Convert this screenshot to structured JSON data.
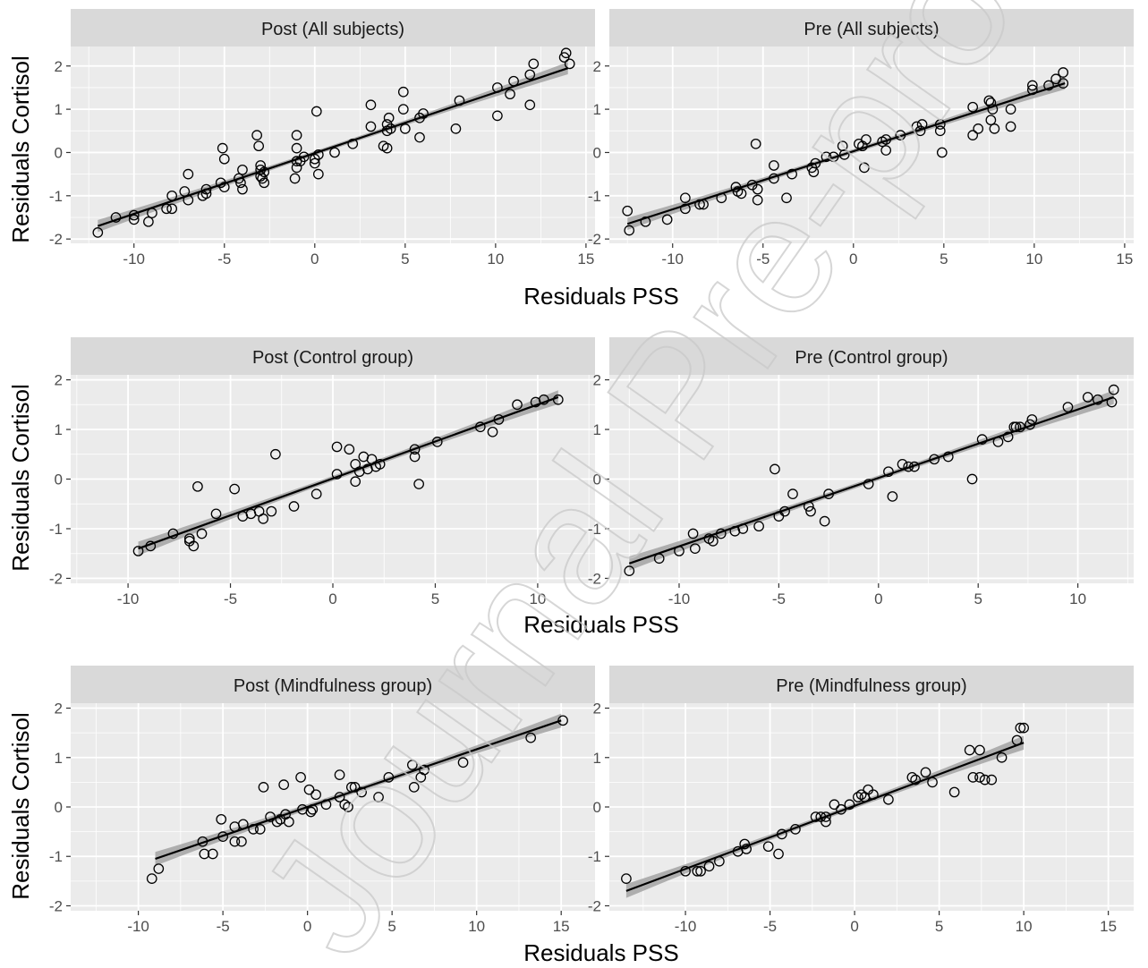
{
  "colors": {
    "panel_bg": "#ebebeb",
    "strip_bg": "#d9d9d9",
    "grid": "#ffffff",
    "point": "#000000",
    "line": "#000000",
    "band": "#999999"
  },
  "watermark": "Journal Pre-proof",
  "chart_data": [
    {
      "row": 1,
      "col": 1,
      "type": "scatter",
      "title": "Post (All subjects)",
      "xlabel": "Residuals PSS",
      "ylabel": "Residuals Cortisol",
      "xlim": [
        -13.5,
        15.5
      ],
      "ylim": [
        -2.1,
        2.45
      ],
      "xticks": [
        -10,
        -5,
        0,
        5,
        10,
        15
      ],
      "yticks": [
        -2,
        -1,
        0,
        1,
        2
      ],
      "regression": {
        "x": [
          -12,
          14
        ],
        "y": [
          -1.7,
          1.95
        ]
      },
      "points": [
        [
          -12,
          -1.85
        ],
        [
          -11,
          -1.5
        ],
        [
          -10,
          -1.55
        ],
        [
          -10,
          -1.45
        ],
        [
          -9.2,
          -1.6
        ],
        [
          -9,
          -1.4
        ],
        [
          -8.2,
          -1.3
        ],
        [
          -7.9,
          -1.3
        ],
        [
          -7.9,
          -1
        ],
        [
          -7.2,
          -0.9
        ],
        [
          -7,
          -0.5
        ],
        [
          -7,
          -1.1
        ],
        [
          -6.2,
          -1
        ],
        [
          -6,
          -0.85
        ],
        [
          -6,
          -0.95
        ],
        [
          -5.1,
          0.1
        ],
        [
          -5,
          -0.15
        ],
        [
          -5.2,
          -0.7
        ],
        [
          -5,
          -0.8
        ],
        [
          -4.2,
          -0.6
        ],
        [
          -4.1,
          -0.7
        ],
        [
          -4,
          -0.85
        ],
        [
          -4,
          -0.4
        ],
        [
          -3.2,
          0.4
        ],
        [
          -3.1,
          0.15
        ],
        [
          -3,
          -0.3
        ],
        [
          -3,
          -0.4
        ],
        [
          -3,
          -0.55
        ],
        [
          -2.9,
          -0.6
        ],
        [
          -2.8,
          -0.7
        ],
        [
          -2.8,
          -0.45
        ],
        [
          -1,
          0.4
        ],
        [
          -1,
          0.1
        ],
        [
          -1,
          -0.2
        ],
        [
          -1,
          -0.35
        ],
        [
          -1.1,
          -0.6
        ],
        [
          -0.8,
          -0.2
        ],
        [
          -0.6,
          -0.1
        ],
        [
          0,
          -0.15
        ],
        [
          0,
          -0.25
        ],
        [
          0.1,
          0.95
        ],
        [
          0.2,
          -0.5
        ],
        [
          0.2,
          -0.05
        ],
        [
          1.1,
          0
        ],
        [
          2.1,
          0.2
        ],
        [
          3.1,
          1.1
        ],
        [
          3.1,
          0.6
        ],
        [
          3.8,
          0.15
        ],
        [
          4,
          0.1
        ],
        [
          4,
          0.5
        ],
        [
          4,
          0.65
        ],
        [
          4.1,
          0.8
        ],
        [
          4.2,
          0.55
        ],
        [
          4.9,
          1.4
        ],
        [
          4.9,
          1
        ],
        [
          5,
          0.55
        ],
        [
          5.8,
          0.8
        ],
        [
          5.8,
          0.35
        ],
        [
          6,
          0.9
        ],
        [
          7.8,
          0.55
        ],
        [
          8,
          1.2
        ],
        [
          10.1,
          1.5
        ],
        [
          10.1,
          0.85
        ],
        [
          10.8,
          1.35
        ],
        [
          11,
          1.65
        ],
        [
          11.9,
          1.8
        ],
        [
          11.9,
          1.1
        ],
        [
          12.1,
          2.05
        ],
        [
          13.8,
          2.2
        ],
        [
          13.9,
          2.3
        ],
        [
          14.1,
          2.05
        ]
      ]
    },
    {
      "row": 1,
      "col": 2,
      "type": "scatter",
      "title": "Pre (All subjects)",
      "xlabel": "Residuals PSS",
      "ylabel": "Residuals Cortisol",
      "xlim": [
        -13.5,
        15.5
      ],
      "ylim": [
        -2.1,
        2.45
      ],
      "xticks": [
        -10,
        -5,
        0,
        5,
        10,
        15
      ],
      "yticks": [
        -2,
        -1,
        0,
        1,
        2
      ],
      "regression": {
        "x": [
          -12.5,
          11.7
        ],
        "y": [
          -1.65,
          1.6
        ]
      },
      "points": [
        [
          -12.5,
          -1.35
        ],
        [
          -12.4,
          -1.8
        ],
        [
          -11.5,
          -1.6
        ],
        [
          -10.3,
          -1.55
        ],
        [
          -9.3,
          -1.05
        ],
        [
          -9.3,
          -1.3
        ],
        [
          -8.5,
          -1.2
        ],
        [
          -8.3,
          -1.2
        ],
        [
          -7.3,
          -1.05
        ],
        [
          -6.5,
          -0.8
        ],
        [
          -6.4,
          -0.9
        ],
        [
          -6.2,
          -0.95
        ],
        [
          -5.6,
          -0.75
        ],
        [
          -5.4,
          0.2
        ],
        [
          -5.3,
          -0.85
        ],
        [
          -5.3,
          -1.1
        ],
        [
          -4.4,
          -0.3
        ],
        [
          -4.4,
          -0.6
        ],
        [
          -3.7,
          -1.05
        ],
        [
          -3.4,
          -0.5
        ],
        [
          -2.3,
          -0.35
        ],
        [
          -2.1,
          -0.25
        ],
        [
          -2.2,
          -0.45
        ],
        [
          -1.5,
          -0.1
        ],
        [
          -1.1,
          -0.1
        ],
        [
          -0.6,
          0.15
        ],
        [
          -0.5,
          -0.05
        ],
        [
          0.3,
          0.2
        ],
        [
          0.5,
          0.15
        ],
        [
          0.6,
          -0.35
        ],
        [
          0.7,
          0.3
        ],
        [
          1.6,
          0.25
        ],
        [
          1.8,
          0.3
        ],
        [
          1.8,
          0.05
        ],
        [
          2.6,
          0.4
        ],
        [
          3.5,
          0.6
        ],
        [
          3.7,
          0.5
        ],
        [
          3.8,
          0.65
        ],
        [
          4.8,
          0.65
        ],
        [
          4.8,
          0.5
        ],
        [
          4.9,
          0
        ],
        [
          6.6,
          1.05
        ],
        [
          6.6,
          0.4
        ],
        [
          6.9,
          0.55
        ],
        [
          7.5,
          1.2
        ],
        [
          7.6,
          1.15
        ],
        [
          7.7,
          1
        ],
        [
          7.6,
          0.75
        ],
        [
          7.8,
          0.55
        ],
        [
          8.7,
          0.6
        ],
        [
          8.7,
          1
        ],
        [
          9.9,
          1.45
        ],
        [
          9.9,
          1.55
        ],
        [
          10.8,
          1.55
        ],
        [
          11.2,
          1.7
        ],
        [
          11.6,
          1.85
        ],
        [
          11.6,
          1.6
        ]
      ]
    },
    {
      "row": 2,
      "col": 1,
      "type": "scatter",
      "title": "Post (Control group)",
      "xlabel": "Residuals PSS",
      "ylabel": "Residuals Cortisol",
      "xlim": [
        -12.8,
        12.8
      ],
      "ylim": [
        -2.1,
        2.1
      ],
      "xticks": [
        -10,
        -5,
        0,
        5,
        10
      ],
      "yticks": [
        -2,
        -1,
        0,
        1,
        2
      ],
      "regression": {
        "x": [
          -9.5,
          11
        ],
        "y": [
          -1.4,
          1.65
        ]
      },
      "points": [
        [
          -9.5,
          -1.45
        ],
        [
          -8.9,
          -1.35
        ],
        [
          -7.8,
          -1.1
        ],
        [
          -7,
          -1.2
        ],
        [
          -7,
          -1.25
        ],
        [
          -6.8,
          -1.35
        ],
        [
          -6.6,
          -0.15
        ],
        [
          -6.4,
          -1.1
        ],
        [
          -5.7,
          -0.7
        ],
        [
          -4.8,
          -0.2
        ],
        [
          -4.4,
          -0.75
        ],
        [
          -4,
          -0.7
        ],
        [
          -3.6,
          -0.65
        ],
        [
          -3.4,
          -0.8
        ],
        [
          -3,
          -0.65
        ],
        [
          -2.8,
          0.5
        ],
        [
          -1.9,
          -0.55
        ],
        [
          -0.8,
          -0.3
        ],
        [
          0.2,
          0.65
        ],
        [
          0.2,
          0.1
        ],
        [
          0.8,
          0.6
        ],
        [
          1.1,
          0.3
        ],
        [
          1.1,
          -0.05
        ],
        [
          1.3,
          0.15
        ],
        [
          1.5,
          0.45
        ],
        [
          1.7,
          0.2
        ],
        [
          1.9,
          0.4
        ],
        [
          2.1,
          0.25
        ],
        [
          2.3,
          0.3
        ],
        [
          4,
          0.45
        ],
        [
          4,
          0.6
        ],
        [
          4.2,
          -0.1
        ],
        [
          5.1,
          0.75
        ],
        [
          7.2,
          1.05
        ],
        [
          7.8,
          0.95
        ],
        [
          8.1,
          1.2
        ],
        [
          9,
          1.5
        ],
        [
          9.9,
          1.55
        ],
        [
          10.3,
          1.6
        ],
        [
          11,
          1.6
        ]
      ]
    },
    {
      "row": 2,
      "col": 2,
      "type": "scatter",
      "title": "Pre (Control group)",
      "xlabel": "Residuals PSS",
      "ylabel": "Residuals Cortisol",
      "xlim": [
        -13.5,
        12.8
      ],
      "ylim": [
        -2.1,
        2.1
      ],
      "xticks": [
        -10,
        -5,
        0,
        5,
        10
      ],
      "yticks": [
        -2,
        -1,
        0,
        1,
        2
      ],
      "regression": {
        "x": [
          -12.5,
          11.8
        ],
        "y": [
          -1.7,
          1.65
        ]
      },
      "points": [
        [
          -12.5,
          -1.85
        ],
        [
          -11,
          -1.6
        ],
        [
          -10,
          -1.45
        ],
        [
          -9.3,
          -1.1
        ],
        [
          -9.2,
          -1.4
        ],
        [
          -8.5,
          -1.2
        ],
        [
          -8.3,
          -1.25
        ],
        [
          -7.9,
          -1.1
        ],
        [
          -7.2,
          -1.05
        ],
        [
          -6.8,
          -1
        ],
        [
          -6,
          -0.95
        ],
        [
          -5.2,
          0.2
        ],
        [
          -5,
          -0.75
        ],
        [
          -4.7,
          -0.65
        ],
        [
          -4.3,
          -0.3
        ],
        [
          -3.5,
          -0.55
        ],
        [
          -3.4,
          -0.65
        ],
        [
          -2.7,
          -0.85
        ],
        [
          -2.5,
          -0.3
        ],
        [
          -0.5,
          -0.1
        ],
        [
          0.5,
          0.15
        ],
        [
          0.7,
          -0.35
        ],
        [
          1.2,
          0.3
        ],
        [
          1.5,
          0.25
        ],
        [
          1.8,
          0.25
        ],
        [
          2.8,
          0.4
        ],
        [
          3.5,
          0.45
        ],
        [
          4.7,
          0
        ],
        [
          5.2,
          0.8
        ],
        [
          6,
          0.75
        ],
        [
          6.5,
          0.85
        ],
        [
          6.8,
          1.05
        ],
        [
          6.9,
          1.05
        ],
        [
          7.1,
          1.05
        ],
        [
          7.6,
          1.1
        ],
        [
          7.7,
          1.2
        ],
        [
          9.5,
          1.45
        ],
        [
          10.5,
          1.65
        ],
        [
          11,
          1.6
        ],
        [
          11.7,
          1.55
        ],
        [
          11.8,
          1.8
        ]
      ]
    },
    {
      "row": 3,
      "col": 1,
      "type": "scatter",
      "title": "Post (Mindfulness group)",
      "xlabel": "Residuals PSS",
      "ylabel": "Residuals Cortisol",
      "xlim": [
        -14,
        17
      ],
      "ylim": [
        -2.1,
        2.1
      ],
      "xticks": [
        -10,
        -5,
        0,
        5,
        10,
        15
      ],
      "yticks": [
        -2,
        -1,
        0,
        1,
        2
      ],
      "regression": {
        "x": [
          -9,
          15
        ],
        "y": [
          -1.05,
          1.75
        ]
      },
      "points": [
        [
          -9.2,
          -1.45
        ],
        [
          -8.8,
          -1.25
        ],
        [
          -6.2,
          -0.7
        ],
        [
          -6.1,
          -0.95
        ],
        [
          -5.6,
          -0.95
        ],
        [
          -5.1,
          -0.25
        ],
        [
          -5,
          -0.6
        ],
        [
          -4.3,
          -0.4
        ],
        [
          -4.3,
          -0.7
        ],
        [
          -3.9,
          -0.7
        ],
        [
          -3.8,
          -0.35
        ],
        [
          -3.2,
          -0.45
        ],
        [
          -2.8,
          -0.45
        ],
        [
          -2.6,
          0.4
        ],
        [
          -2.2,
          -0.2
        ],
        [
          -1.8,
          -0.3
        ],
        [
          -1.6,
          -0.25
        ],
        [
          -1.4,
          0.45
        ],
        [
          -1.3,
          -0.15
        ],
        [
          -1.1,
          -0.3
        ],
        [
          -0.4,
          0.6
        ],
        [
          -0.3,
          -0.05
        ],
        [
          0.1,
          0.35
        ],
        [
          0.2,
          -0.1
        ],
        [
          0.3,
          -0.05
        ],
        [
          0.5,
          0.25
        ],
        [
          1.1,
          0.05
        ],
        [
          1.9,
          0.65
        ],
        [
          1.9,
          0.2
        ],
        [
          2.2,
          0.05
        ],
        [
          2.4,
          0
        ],
        [
          2.6,
          0.4
        ],
        [
          2.8,
          0.4
        ],
        [
          3.2,
          0.3
        ],
        [
          4.2,
          0.2
        ],
        [
          4.8,
          0.6
        ],
        [
          6.2,
          0.85
        ],
        [
          6.3,
          0.4
        ],
        [
          6.7,
          0.6
        ],
        [
          6.9,
          0.75
        ],
        [
          9.2,
          0.9
        ],
        [
          13.2,
          1.4
        ],
        [
          15.1,
          1.75
        ]
      ]
    },
    {
      "row": 3,
      "col": 2,
      "type": "scatter",
      "title": "Pre (Mindfulness group)",
      "xlabel": "Residuals PSS",
      "ylabel": "Residuals Cortisol",
      "xlim": [
        -14.5,
        16.5
      ],
      "ylim": [
        -2.1,
        2.1
      ],
      "xticks": [
        -10,
        -5,
        0,
        5,
        10,
        15
      ],
      "yticks": [
        -2,
        -1,
        0,
        1,
        2
      ],
      "regression": {
        "x": [
          -13.5,
          10
        ],
        "y": [
          -1.7,
          1.3
        ]
      },
      "points": [
        [
          -13.5,
          -1.45
        ],
        [
          -10,
          -1.3
        ],
        [
          -9.3,
          -1.3
        ],
        [
          -9.1,
          -1.3
        ],
        [
          -8.6,
          -1.2
        ],
        [
          -8,
          -1.1
        ],
        [
          -6.9,
          -0.9
        ],
        [
          -6.5,
          -0.75
        ],
        [
          -6.4,
          -0.85
        ],
        [
          -5.1,
          -0.8
        ],
        [
          -4.5,
          -0.95
        ],
        [
          -4.3,
          -0.55
        ],
        [
          -3.5,
          -0.45
        ],
        [
          -2.3,
          -0.2
        ],
        [
          -2,
          -0.2
        ],
        [
          -1.7,
          -0.2
        ],
        [
          -1.7,
          -0.3
        ],
        [
          -1.2,
          0.05
        ],
        [
          -0.8,
          -0.05
        ],
        [
          -0.3,
          0.05
        ],
        [
          0.2,
          0.2
        ],
        [
          0.4,
          0.25
        ],
        [
          0.6,
          0.2
        ],
        [
          0.8,
          0.35
        ],
        [
          1.1,
          0.25
        ],
        [
          2,
          0.15
        ],
        [
          3.4,
          0.6
        ],
        [
          3.6,
          0.55
        ],
        [
          4.2,
          0.7
        ],
        [
          4.6,
          0.5
        ],
        [
          5.9,
          0.3
        ],
        [
          6.8,
          1.15
        ],
        [
          7,
          0.6
        ],
        [
          7.4,
          0.6
        ],
        [
          7.4,
          1.15
        ],
        [
          7.7,
          0.55
        ],
        [
          8.1,
          0.55
        ],
        [
          8.7,
          1
        ],
        [
          9.6,
          1.35
        ],
        [
          9.8,
          1.6
        ],
        [
          10,
          1.6
        ]
      ]
    }
  ]
}
